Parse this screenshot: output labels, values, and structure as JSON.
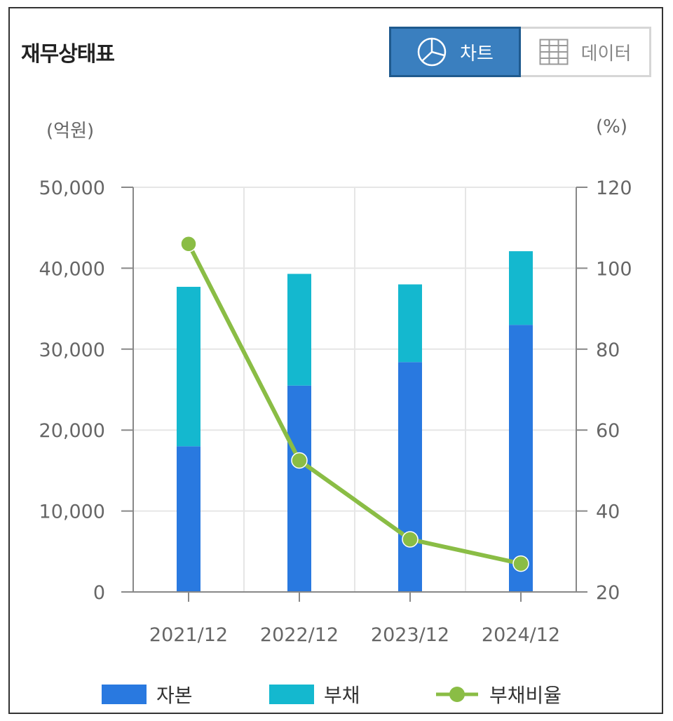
{
  "header": {
    "title": "재무상태표",
    "toggle": {
      "chart_label": "차트",
      "data_label": "데이터"
    }
  },
  "units": {
    "left": "(억원)",
    "right": "(%)"
  },
  "colors": {
    "capital": "#2979e0",
    "liability": "#14b8cf",
    "ratio": "#8abd45",
    "active_button": "#3a7fbf"
  },
  "legend": {
    "capital": "자본",
    "liability": "부채",
    "ratio": "부채비율"
  },
  "chart_data": {
    "type": "bar",
    "stacked": true,
    "categories": [
      "2021/12",
      "2022/12",
      "2023/12",
      "2024/12"
    ],
    "series": [
      {
        "name": "자본",
        "values": [
          18000,
          25500,
          28400,
          33000
        ]
      },
      {
        "name": "부채",
        "values": [
          19700,
          13800,
          9600,
          9100
        ]
      }
    ],
    "line_series": {
      "name": "부채비율",
      "axis": "right",
      "values": [
        106,
        52.5,
        33,
        27
      ]
    },
    "ylim_left": [
      0,
      50000
    ],
    "ylim_right": [
      20,
      120
    ],
    "yticks_left": [
      "0",
      "10,000",
      "20,000",
      "30,000",
      "40,000",
      "50,000"
    ],
    "yticks_right": [
      "20",
      "40",
      "60",
      "80",
      "100",
      "120"
    ],
    "grid": true
  }
}
